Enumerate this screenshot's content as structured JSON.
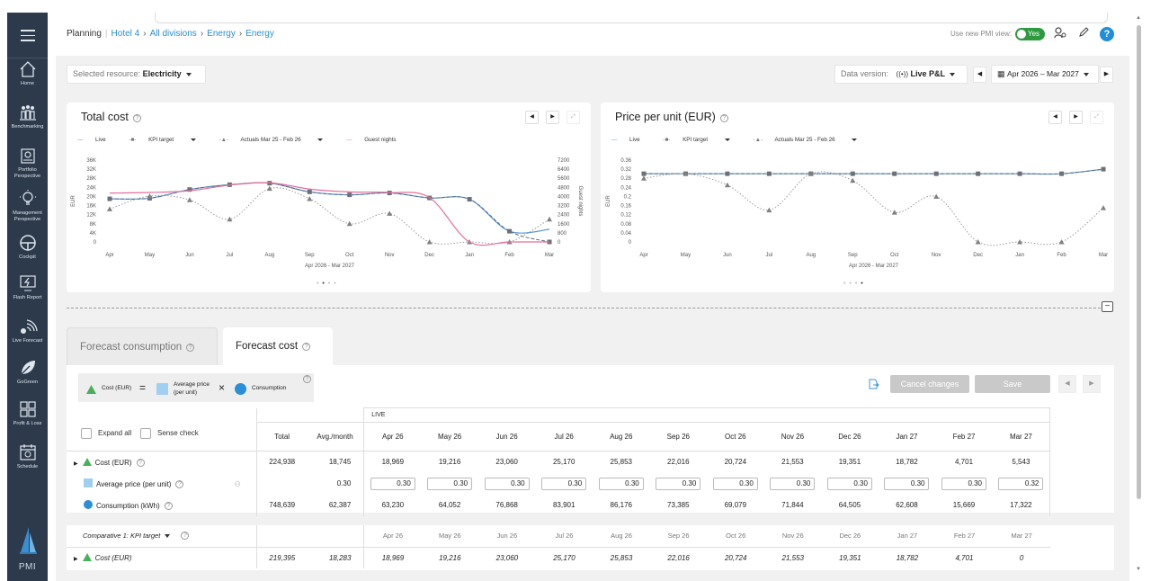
{
  "breadcrumb": {
    "root": "Planning",
    "items": [
      "Hotel 4",
      "All divisions",
      "Energy",
      "Energy"
    ]
  },
  "header": {
    "pmi_view_label": "Use new PMI view:",
    "pmi_toggle": "Yes",
    "help": "?"
  },
  "sidebar": {
    "items": [
      {
        "label": "Home",
        "icon": "home-icon"
      },
      {
        "label": "Benchmarking",
        "icon": "benchmarking-icon"
      },
      {
        "label": "Portfolio",
        "label2": "Perspective",
        "icon": "portfolio-icon"
      },
      {
        "label": "Management",
        "label2": "Perspective",
        "icon": "bulb-icon"
      },
      {
        "label": "Cockpit",
        "icon": "steering-wheel-icon"
      },
      {
        "label": "Flash Report",
        "icon": "flash-report-icon"
      },
      {
        "label": "Live Forecast",
        "icon": "live-forecast-icon"
      },
      {
        "label": "GoGreen",
        "icon": "leaf-icon"
      },
      {
        "label": "Profit & Loss",
        "icon": "profit-loss-icon"
      },
      {
        "label": "Schedule",
        "icon": "schedule-icon"
      }
    ],
    "logo": "PMI"
  },
  "toolbar": {
    "resource_label": "Selected resource:",
    "resource_value": "Electricity",
    "data_version_label": "Data version:",
    "data_version_value": "Live P&L",
    "period_value": "Apr 2026 – Mar 2027"
  },
  "total_cost_chart": {
    "title": "Total cost",
    "legend": [
      "Live",
      "KPI target",
      "Actuals Mar 25 - Feb 26",
      "Guest nights"
    ],
    "ylabel": "EUR",
    "y2label": "Guest nights",
    "y_ticks": [
      "36K",
      "32K",
      "28K",
      "24K",
      "20K",
      "16K",
      "12K",
      "8K",
      "4K",
      "0"
    ],
    "y2_ticks": [
      "7200",
      "6400",
      "5600",
      "4800",
      "4000",
      "3200",
      "2400",
      "1600",
      "800",
      "0"
    ],
    "x_ticks": [
      "Apr",
      "May",
      "Jun",
      "Jul",
      "Aug",
      "Sep",
      "Oct",
      "Nov",
      "Dec",
      "Jan",
      "Feb",
      "Mar"
    ],
    "xlabel": "Apr 2026 - Mar 2027"
  },
  "price_chart": {
    "title": "Price per unit (EUR)",
    "legend": [
      "Live",
      "KPI target",
      "Actuals Mar 25 - Feb 26"
    ],
    "ylabel": "EUR",
    "y_ticks": [
      "0.36",
      "0.32",
      "0.28",
      "0.24",
      "0.2",
      "0.16",
      "0.12",
      "0.08",
      "0.04",
      "0"
    ],
    "x_ticks": [
      "Apr",
      "May",
      "Jun",
      "Jul",
      "Aug",
      "Sep",
      "Oct",
      "Nov",
      "Dec",
      "Jan",
      "Feb",
      "Mar"
    ],
    "xlabel": "Apr 2026 - Mar 2027"
  },
  "chart_data": [
    {
      "type": "line",
      "title": "Total cost",
      "ylabel": "EUR",
      "y2label": "Guest nights",
      "xlabel": "Apr 2026 - Mar 2027",
      "categories": [
        "Apr",
        "May",
        "Jun",
        "Jul",
        "Aug",
        "Sep",
        "Oct",
        "Nov",
        "Dec",
        "Jan",
        "Feb",
        "Mar"
      ],
      "ylim": [
        0,
        36000
      ],
      "y2lim": [
        0,
        7200
      ],
      "series": [
        {
          "name": "Live",
          "values": [
            18969,
            19216,
            23060,
            25170,
            25853,
            22016,
            20724,
            21553,
            19351,
            18782,
            4701,
            5543
          ]
        },
        {
          "name": "KPI target",
          "values": [
            18969,
            19216,
            23060,
            25170,
            25853,
            22016,
            20724,
            21553,
            19351,
            18782,
            4701,
            0
          ]
        },
        {
          "name": "Actuals Mar 25 - Feb 26",
          "values": [
            14500,
            20200,
            18500,
            10000,
            23500,
            19000,
            8000,
            12500,
            0,
            0,
            0,
            10000
          ]
        },
        {
          "name": "Guest nights",
          "axis": "y2",
          "values": [
            4300,
            4350,
            4500,
            5000,
            5200,
            4650,
            4400,
            4350,
            3900,
            0,
            0,
            0
          ]
        }
      ],
      "legend": "top-left"
    },
    {
      "type": "line",
      "title": "Price per unit (EUR)",
      "ylabel": "EUR",
      "xlabel": "Apr 2026 - Mar 2027",
      "categories": [
        "Apr",
        "May",
        "Jun",
        "Jul",
        "Aug",
        "Sep",
        "Oct",
        "Nov",
        "Dec",
        "Jan",
        "Feb",
        "Mar"
      ],
      "ylim": [
        0,
        0.36
      ],
      "series": [
        {
          "name": "Live",
          "values": [
            0.3,
            0.3,
            0.3,
            0.3,
            0.3,
            0.3,
            0.3,
            0.3,
            0.3,
            0.3,
            0.3,
            0.32
          ]
        },
        {
          "name": "KPI target",
          "values": [
            0.3,
            0.3,
            0.3,
            0.3,
            0.3,
            0.3,
            0.3,
            0.3,
            0.3,
            0.3,
            0.3,
            0.32
          ]
        },
        {
          "name": "Actuals Mar 25 - Feb 26",
          "values": [
            0.28,
            0.3,
            0.25,
            0.14,
            0.3,
            0.27,
            0.13,
            0.2,
            0,
            0,
            0,
            0.15
          ]
        }
      ],
      "legend": "top-left"
    }
  ],
  "tabs": {
    "consumption": "Forecast consumption",
    "cost": "Forecast cost"
  },
  "formula": {
    "cost": "Cost (EUR)",
    "equals": "=",
    "avg_price": "Average price",
    "avg_price2": "(per unit)",
    "times": "×",
    "consumption": "Consumption"
  },
  "actions": {
    "cancel": "Cancel changes",
    "save": "Save"
  },
  "table": {
    "expand_all": "Expand all",
    "sense_check": "Sense check",
    "total_header": "Total",
    "avg_header": "Avg./month",
    "live_header": "LIVE",
    "months": [
      "Apr 26",
      "May 26",
      "Jun 26",
      "Jul 26",
      "Aug 26",
      "Sep 26",
      "Oct 26",
      "Nov 26",
      "Dec 26",
      "Jan 27",
      "Feb 27",
      "Mar 27"
    ],
    "rows": [
      {
        "label": "Cost (EUR)",
        "total": "224,938",
        "avg": "18,745",
        "values": [
          "18,969",
          "19,216",
          "23,060",
          "25,170",
          "25,853",
          "22,016",
          "20,724",
          "21,553",
          "19,351",
          "18,782",
          "4,701",
          "5,543"
        ]
      },
      {
        "label": "Average price (per unit)",
        "total": "",
        "avg": "0.30",
        "values": [
          "0.30",
          "0.30",
          "0.30",
          "0.30",
          "0.30",
          "0.30",
          "0.30",
          "0.30",
          "0.30",
          "0.30",
          "0.30",
          "0.32"
        ]
      },
      {
        "label": "Consumption (kWh)",
        "total": "748,639",
        "avg": "62,387",
        "values": [
          "63,230",
          "64,052",
          "76,868",
          "83,901",
          "86,176",
          "73,385",
          "69,079",
          "71,844",
          "64,505",
          "62,608",
          "15,669",
          "17,322"
        ]
      }
    ]
  },
  "comparative": {
    "label": "Comparative 1: KPI target",
    "months": [
      "Apr 26",
      "May 26",
      "Jun 26",
      "Jul 26",
      "Aug 26",
      "Sep 26",
      "Oct 26",
      "Nov 26",
      "Dec 26",
      "Jan 27",
      "Feb 27",
      "Mar 27"
    ],
    "row": {
      "label": "Cost (EUR)",
      "total": "219,395",
      "avg": "18,283",
      "values": [
        "18,969",
        "19,216",
        "23,060",
        "25,170",
        "25,853",
        "22,016",
        "20,724",
        "21,553",
        "19,351",
        "18,782",
        "4,701",
        "0"
      ]
    }
  }
}
